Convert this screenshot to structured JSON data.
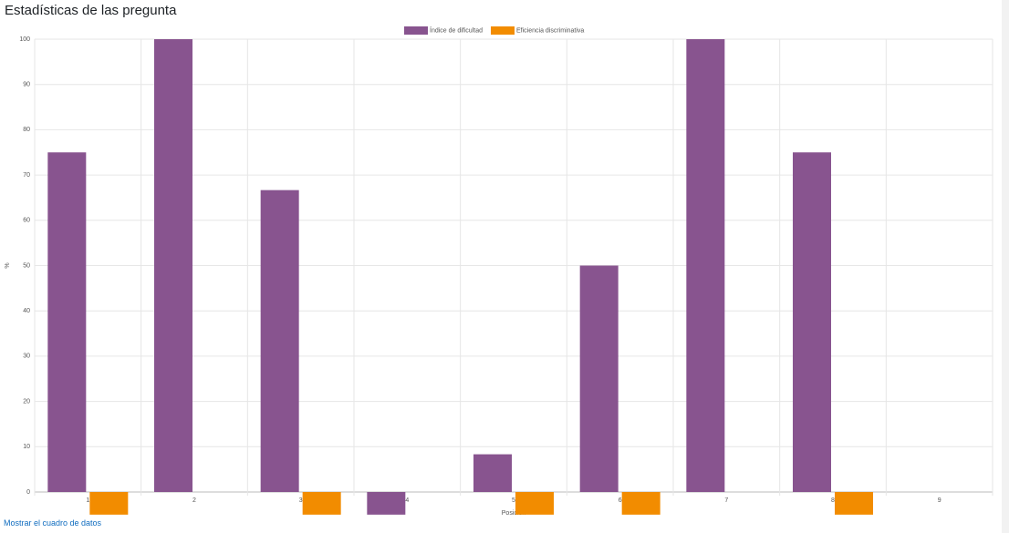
{
  "heading": "Estadísticas de las pregunta",
  "link": "Mostrar el cuadro de datos",
  "chart_data": {
    "type": "bar",
    "x_label": "Posición",
    "y_label": "%",
    "categories": [
      "1",
      "2",
      "3",
      "4",
      "5",
      "6",
      "7",
      "8",
      "9"
    ],
    "series": [
      {
        "name": "Índice de dificultad",
        "color": "#88548f",
        "values": [
          75,
          100,
          66.67,
          -5,
          8.33,
          50,
          100,
          75,
          null
        ]
      },
      {
        "name": "Eficiencia discriminativa",
        "color": "#f28c00",
        "values": [
          -5,
          null,
          -5,
          null,
          -5,
          -5,
          null,
          -5,
          null
        ]
      }
    ],
    "ylim": [
      0,
      100
    ],
    "yticks": [
      0,
      10,
      20,
      30,
      40,
      50,
      60,
      70,
      80,
      90,
      100
    ],
    "grid": true,
    "legend": "top"
  }
}
